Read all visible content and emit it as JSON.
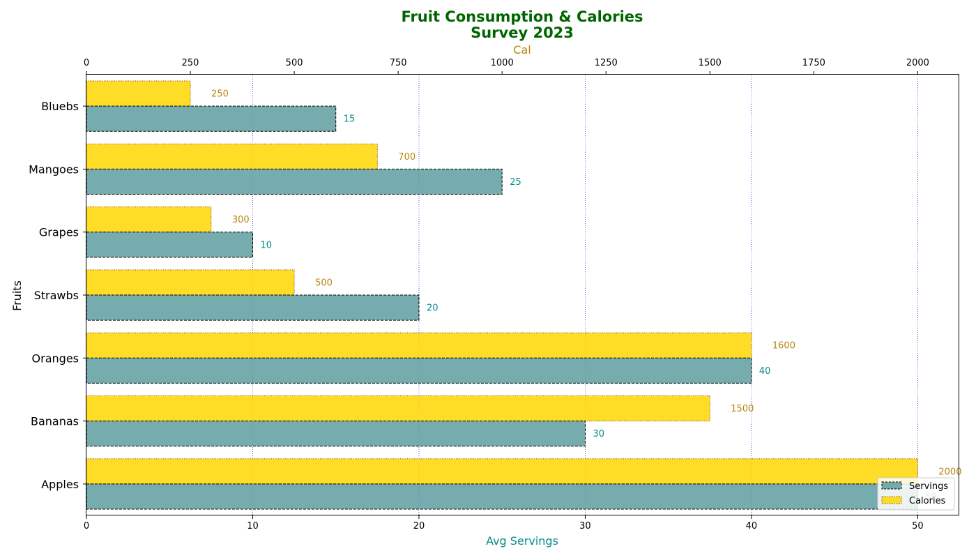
{
  "chart_data": {
    "type": "bar",
    "orientation": "horizontal",
    "title": "Fruit Consumption & Calories",
    "subtitle": "Survey 2023",
    "ylabel": "Fruits",
    "categories": [
      "Apples",
      "Bananas",
      "Oranges",
      "Strawbs",
      "Grapes",
      "Mangoes",
      "Bluebs"
    ],
    "series": [
      {
        "name": "Servings",
        "axis": "bottom",
        "values": [
          50,
          30,
          40,
          20,
          10,
          25,
          15
        ],
        "color": "#5f9ea0",
        "label_color": "#008b8b"
      },
      {
        "name": "Calories",
        "axis": "top",
        "values": [
          2000,
          1500,
          1600,
          500,
          300,
          700,
          250
        ],
        "color": "#ffd700",
        "label_color": "#b8860b"
      }
    ],
    "x_bottom": {
      "label": "Avg Servings",
      "label_color": "#008b8b",
      "range": [
        0,
        52.5
      ],
      "ticks": [
        0,
        10,
        20,
        30,
        40,
        50
      ]
    },
    "x_top": {
      "label": "Cal",
      "label_color": "#b8860b",
      "range": [
        0,
        2100
      ],
      "ticks": [
        0,
        250,
        500,
        750,
        1000,
        1250,
        1500,
        1750,
        2000
      ]
    },
    "grid": {
      "axis": "x",
      "style": "dotted",
      "color": "#0000cd"
    },
    "legend": {
      "position": "bottom-right",
      "entries": [
        "Servings",
        "Calories"
      ]
    },
    "colors": {
      "title": "#006400",
      "servings_edge": "#000000",
      "calories_edge": "#8b4513"
    }
  }
}
